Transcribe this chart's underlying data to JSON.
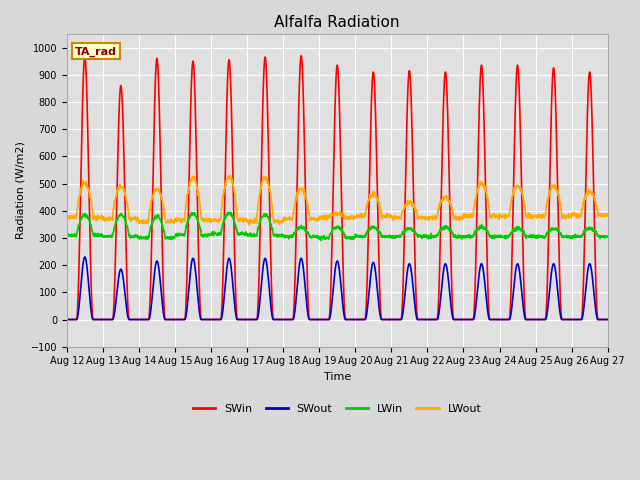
{
  "title": "Alfalfa Radiation",
  "xlabel": "Time",
  "ylabel": "Radiation (W/m2)",
  "ylim": [
    -100,
    1050
  ],
  "n_days": 15,
  "start_day": 12,
  "legend_label": "TA_rad",
  "series": {
    "SWin": {
      "color": "#ff0000",
      "lw": 1.2
    },
    "SWout": {
      "color": "#0000cc",
      "lw": 1.2
    },
    "LWin": {
      "color": "#00cc00",
      "lw": 1.2
    },
    "LWout": {
      "color": "#ffaa00",
      "lw": 1.2
    }
  },
  "yticks": [
    -100,
    0,
    100,
    200,
    300,
    400,
    500,
    600,
    700,
    800,
    900,
    1000
  ],
  "axes_face_color": "#e0e0e0",
  "fig_face_color": "#d8d8d8",
  "grid_color": "#ffffff",
  "legend_box_color": "#ffffcc",
  "legend_box_edge": "#cc8800",
  "SWin_peaks": [
    965,
    860,
    960,
    950,
    955,
    965,
    970,
    935,
    910,
    915,
    910,
    935,
    935,
    925,
    910
  ],
  "SWout_peaks": [
    230,
    185,
    215,
    225,
    225,
    225,
    225,
    215,
    210,
    205,
    205,
    205,
    205,
    205,
    205
  ],
  "LWout_peaks": [
    500,
    490,
    480,
    520,
    525,
    520,
    480,
    390,
    460,
    430,
    450,
    500,
    490,
    490,
    470
  ],
  "LWout_nights": [
    375,
    370,
    360,
    365,
    365,
    360,
    370,
    375,
    380,
    375,
    375,
    380,
    380,
    380,
    385
  ],
  "LWin_base": [
    310,
    305,
    300,
    310,
    315,
    310,
    305,
    300,
    305,
    305,
    305,
    305,
    305,
    305,
    305
  ],
  "LWin_peaks": [
    385,
    385,
    380,
    390,
    390,
    385,
    340,
    340,
    340,
    335,
    340,
    340,
    335,
    335,
    335
  ]
}
